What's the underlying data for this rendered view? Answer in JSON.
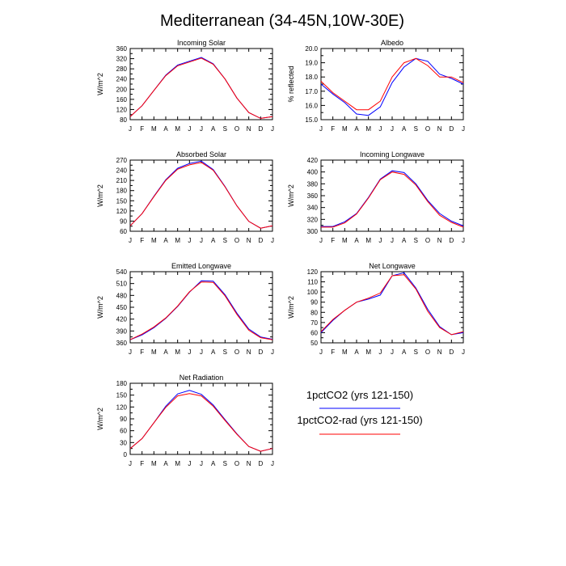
{
  "page_title": "Mediterranean (34-45N,10W-30E)",
  "legend": {
    "entries": [
      {
        "label": "1pctCO2 (yrs 121-150)",
        "color": "#0000ff"
      },
      {
        "label": "1pctCO2-rad (yrs 121-150)",
        "color": "#ff0000"
      }
    ]
  },
  "chart_data": [
    {
      "type": "line",
      "title": "Incoming Solar",
      "ylabel": "W/m^2",
      "xlabel": "",
      "categories": [
        "J",
        "F",
        "M",
        "A",
        "M",
        "J",
        "J",
        "A",
        "S",
        "O",
        "N",
        "D",
        "J"
      ],
      "ylim": [
        80,
        360
      ],
      "yticks": [
        80,
        120,
        160,
        200,
        240,
        280,
        320,
        360
      ],
      "grid": false,
      "series": [
        {
          "color": "#0000ff",
          "values": [
            92,
            135,
            195,
            255,
            295,
            310,
            325,
            300,
            240,
            165,
            108,
            85,
            92
          ]
        },
        {
          "color": "#ff0000",
          "values": [
            92,
            135,
            195,
            253,
            292,
            307,
            322,
            298,
            240,
            165,
            108,
            85,
            92
          ]
        }
      ]
    },
    {
      "type": "line",
      "title": "Albedo",
      "ylabel": "% reflected",
      "xlabel": "",
      "categories": [
        "J",
        "F",
        "M",
        "A",
        "M",
        "J",
        "J",
        "A",
        "S",
        "O",
        "N",
        "D",
        "J"
      ],
      "ylim": [
        15.0,
        20.0
      ],
      "yticks": [
        15.0,
        16.0,
        17.0,
        18.0,
        19.0,
        20.0
      ],
      "yfmt": 1,
      "grid": false,
      "series": [
        {
          "color": "#0000ff",
          "values": [
            17.5,
            16.8,
            16.2,
            15.4,
            15.3,
            15.9,
            17.6,
            18.7,
            19.3,
            19.1,
            18.2,
            17.9,
            17.5
          ]
        },
        {
          "color": "#ff0000",
          "values": [
            17.7,
            16.9,
            16.3,
            15.7,
            15.7,
            16.3,
            18.0,
            19.0,
            19.3,
            18.8,
            18.0,
            18.0,
            17.6
          ]
        }
      ]
    },
    {
      "type": "line",
      "title": "Absorbed Solar",
      "ylabel": "W/m^2",
      "xlabel": "",
      "categories": [
        "J",
        "F",
        "M",
        "A",
        "M",
        "J",
        "J",
        "A",
        "S",
        "O",
        "N",
        "D",
        "J"
      ],
      "ylim": [
        60,
        270
      ],
      "yticks": [
        60,
        90,
        120,
        150,
        180,
        210,
        240,
        270
      ],
      "grid": false,
      "series": [
        {
          "color": "#0000ff",
          "values": [
            76,
            112,
            163,
            212,
            246,
            260,
            267,
            242,
            192,
            135,
            89,
            69,
            76
          ]
        },
        {
          "color": "#ff0000",
          "values": [
            76,
            112,
            162,
            210,
            243,
            256,
            263,
            240,
            191,
            135,
            89,
            69,
            76
          ]
        }
      ]
    },
    {
      "type": "line",
      "title": "Incoming Longwave",
      "ylabel": "W/m^2",
      "xlabel": "",
      "categories": [
        "J",
        "F",
        "M",
        "A",
        "M",
        "J",
        "J",
        "A",
        "S",
        "O",
        "N",
        "D",
        "J"
      ],
      "ylim": [
        300,
        420
      ],
      "yticks": [
        300,
        320,
        340,
        360,
        380,
        400,
        420
      ],
      "grid": false,
      "series": [
        {
          "color": "#0000ff",
          "values": [
            308,
            308,
            316,
            330,
            357,
            388,
            402,
            399,
            380,
            352,
            330,
            317,
            309
          ]
        },
        {
          "color": "#ff0000",
          "values": [
            307,
            307,
            314,
            329,
            356,
            387,
            400,
            396,
            378,
            350,
            327,
            315,
            307
          ]
        }
      ]
    },
    {
      "type": "line",
      "title": "Emitted Longwave",
      "ylabel": "W/m^2",
      "xlabel": "",
      "categories": [
        "J",
        "F",
        "M",
        "A",
        "M",
        "J",
        "J",
        "A",
        "S",
        "O",
        "N",
        "D",
        "J"
      ],
      "ylim": [
        360,
        540
      ],
      "yticks": [
        360,
        390,
        420,
        450,
        480,
        510,
        540
      ],
      "grid": false,
      "series": [
        {
          "color": "#0000ff",
          "values": [
            368,
            380,
            398,
            422,
            452,
            488,
            517,
            516,
            482,
            435,
            395,
            375,
            369
          ]
        },
        {
          "color": "#ff0000",
          "values": [
            368,
            382,
            400,
            423,
            453,
            489,
            514,
            513,
            479,
            432,
            392,
            373,
            368
          ]
        }
      ]
    },
    {
      "type": "line",
      "title": "Net Longwave",
      "ylabel": "W/m^2",
      "xlabel": "",
      "categories": [
        "J",
        "F",
        "M",
        "A",
        "M",
        "J",
        "J",
        "A",
        "S",
        "O",
        "N",
        "D",
        "J"
      ],
      "ylim": [
        50,
        120
      ],
      "yticks": [
        50,
        60,
        70,
        80,
        90,
        100,
        110,
        120
      ],
      "grid": false,
      "series": [
        {
          "color": "#0000ff",
          "values": [
            60,
            72,
            82,
            90,
            93,
            97,
            116,
            119,
            104,
            83,
            66,
            58,
            60
          ]
        },
        {
          "color": "#ff0000",
          "values": [
            61,
            73,
            82,
            90,
            94,
            99,
            116,
            117,
            103,
            81,
            65,
            58,
            61
          ]
        }
      ]
    },
    {
      "type": "line",
      "title": "Net Radiation",
      "ylabel": "W/m^2",
      "xlabel": "",
      "categories": [
        "J",
        "F",
        "M",
        "A",
        "M",
        "J",
        "J",
        "A",
        "S",
        "O",
        "N",
        "D",
        "J"
      ],
      "ylim": [
        0,
        180
      ],
      "yticks": [
        0,
        30,
        60,
        90,
        120,
        150,
        180
      ],
      "grid": false,
      "series": [
        {
          "color": "#0000ff",
          "values": [
            15,
            40,
            80,
            122,
            153,
            162,
            152,
            125,
            88,
            52,
            20,
            8,
            15
          ]
        },
        {
          "color": "#ff0000",
          "values": [
            15,
            40,
            80,
            119,
            148,
            154,
            148,
            122,
            86,
            51,
            20,
            8,
            15
          ]
        }
      ]
    }
  ]
}
